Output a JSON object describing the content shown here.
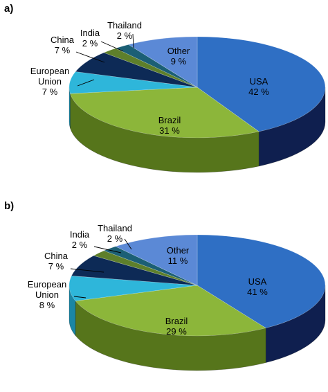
{
  "figure": {
    "panels": [
      {
        "panel_label": "a)",
        "chart_data": {
          "type": "pie",
          "title": "",
          "unit": "%",
          "slices": [
            {
              "label": "USA",
              "value": 42,
              "display": "42 %",
              "color": "#2f6fc4",
              "side_color": "#0f1f4f"
            },
            {
              "label": "Brazil",
              "value": 31,
              "display": "31 %",
              "color": "#8cb63a",
              "side_color": "#56751b"
            },
            {
              "label": "European Union",
              "label_lines": [
                "European",
                "Union"
              ],
              "value": 7,
              "display": "7 %",
              "color": "#2eb6da",
              "side_color": "#1a86a4"
            },
            {
              "label": "China",
              "value": 7,
              "display": "7 %",
              "color": "#0d2a56",
              "side_color": "#081a36"
            },
            {
              "label": "India",
              "value": 2,
              "display": "2 %",
              "color": "#5e7f2b",
              "side_color": "#3d551a"
            },
            {
              "label": "Thailand",
              "value": 2,
              "display": "2 %",
              "color": "#1b5f75",
              "side_color": "#123f4f"
            },
            {
              "label": "Other",
              "value": 9,
              "display": "9 %",
              "color": "#5b89d6",
              "side_color": "#1d3370"
            }
          ]
        }
      },
      {
        "panel_label": "b)",
        "chart_data": {
          "type": "pie",
          "title": "",
          "unit": "%",
          "slices": [
            {
              "label": "USA",
              "value": 41,
              "display": "41 %",
              "color": "#2f6fc4",
              "side_color": "#0f1f4f"
            },
            {
              "label": "Brazil",
              "value": 29,
              "display": "29 %",
              "color": "#8cb63a",
              "side_color": "#56751b"
            },
            {
              "label": "European Union",
              "label_lines": [
                "European",
                "Union"
              ],
              "value": 8,
              "display": "8 %",
              "color": "#2eb6da",
              "side_color": "#1a86a4"
            },
            {
              "label": "China",
              "value": 7,
              "display": "7 %",
              "color": "#0d2a56",
              "side_color": "#081a36"
            },
            {
              "label": "India",
              "value": 2,
              "display": "2 %",
              "color": "#5e7f2b",
              "side_color": "#3d551a"
            },
            {
              "label": "Thailand",
              "value": 2,
              "display": "2 %",
              "color": "#1b5f75",
              "side_color": "#123f4f"
            },
            {
              "label": "Other",
              "value": 11,
              "display": "11 %",
              "color": "#5b89d6",
              "side_color": "#1d3370"
            }
          ]
        }
      }
    ]
  }
}
